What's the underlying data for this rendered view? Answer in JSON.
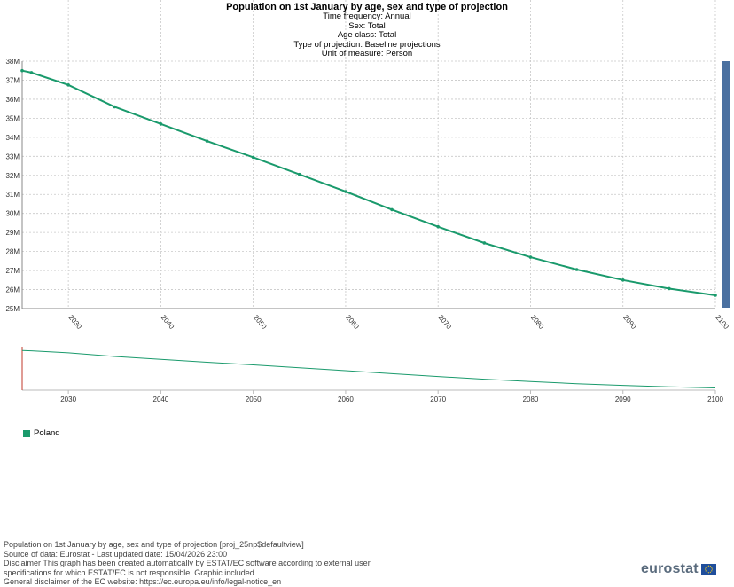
{
  "header": {
    "title": "Population on 1st January by age, sex and type of projection",
    "lines": [
      "Time frequency:  Annual",
      "Sex:  Total",
      "Age class:  Total",
      "Type of projection:  Baseline projections",
      "Unit of measure:  Person"
    ]
  },
  "chart_data": {
    "type": "line",
    "y_ticks": [
      "25M",
      "26M",
      "27M",
      "28M",
      "29M",
      "30M",
      "31M",
      "32M",
      "33M",
      "34M",
      "35M",
      "36M",
      "37M",
      "38M"
    ],
    "x_ticks": [
      "2030",
      "2040",
      "2050",
      "2060",
      "2070",
      "2080",
      "2090",
      "2100"
    ],
    "ylim": [
      25,
      38
    ],
    "xlim": [
      2025,
      2100
    ],
    "grid": true,
    "series": [
      {
        "name": "Poland",
        "color": "#1a9a6c",
        "x": [
          2025,
          2026,
          2030,
          2035,
          2040,
          2045,
          2050,
          2055,
          2060,
          2065,
          2070,
          2075,
          2080,
          2085,
          2090,
          2095,
          2100
        ],
        "values": [
          37.5,
          37.4,
          36.75,
          35.6,
          34.7,
          33.8,
          32.95,
          32.05,
          31.15,
          30.2,
          29.3,
          28.45,
          27.7,
          27.05,
          26.5,
          26.05,
          25.7
        ]
      }
    ]
  },
  "legend": {
    "label": "Poland",
    "color": "#1a9a6c"
  },
  "footer": {
    "lines": [
      "Population on 1st January by age, sex and type of projection [proj_25np$defaultview]",
      "Source of data: Eurostat - Last updated date: 15/04/2026 23:00",
      "Disclaimer This graph has been created automatically by ESTAT/EC software according to external user",
      "specifications for which ESTAT/EC is not responsible. Graphic included.",
      "General disclaimer of the EC website: https://ec.europa.eu/info/legal-notice_en"
    ]
  },
  "logo": {
    "text": "eurostat"
  }
}
